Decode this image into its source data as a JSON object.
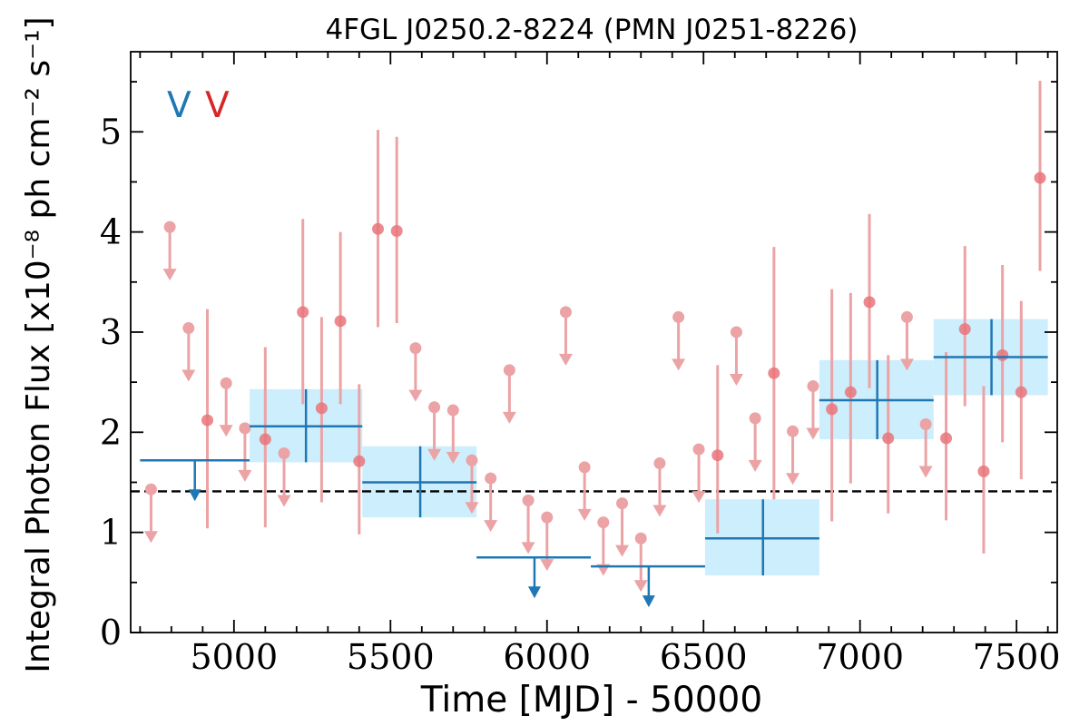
{
  "chart_data": {
    "type": "scatter",
    "title": "4FGL J0250.2-8224 (PMN J0251-8226)",
    "xlabel": "Time [MJD] - 50000",
    "ylabel": "Integral Photon Flux [x10⁻⁸ ph cm⁻² s⁻¹]",
    "xlim": [
      4670,
      7630
    ],
    "ylim": [
      0,
      5.8
    ],
    "xticks": [
      5000,
      5500,
      6000,
      6500,
      7000,
      7500
    ],
    "yticks": [
      0,
      1,
      2,
      3,
      4,
      5
    ],
    "legend": {
      "placement": "top-left",
      "entries": [
        {
          "label": "V",
          "color": "#1f77b4"
        },
        {
          "label": "V",
          "color": "#d62728"
        }
      ]
    },
    "reference_line": {
      "y": 1.41,
      "style": "dashed",
      "color": "#000000"
    },
    "colors": {
      "blue": "#1f77b4",
      "band": "#cdeefc",
      "red_marker": "#e9747a",
      "red_bar": "#eba3a5"
    },
    "series": [
      {
        "type": "binned",
        "bins": [
          {
            "x0": 4700,
            "x1": 5050,
            "xc": 4875,
            "ul": 1.72
          },
          {
            "x0": 5050,
            "x1": 5410,
            "xc": 5230,
            "y": 2.06,
            "ylo": 1.7,
            "yhi": 2.43
          },
          {
            "x0": 5410,
            "x1": 5775,
            "xc": 5595,
            "y": 1.5,
            "ylo": 1.15,
            "yhi": 1.86
          },
          {
            "x0": 5775,
            "x1": 6140,
            "xc": 5960,
            "ul": 0.75
          },
          {
            "x0": 6140,
            "x1": 6505,
            "xc": 6325,
            "ul": 0.66
          },
          {
            "x0": 6505,
            "x1": 6870,
            "xc": 6690,
            "y": 0.94,
            "ylo": 0.57,
            "yhi": 1.33
          },
          {
            "x0": 6870,
            "x1": 7235,
            "xc": 7055,
            "y": 2.32,
            "ylo": 1.93,
            "yhi": 2.72
          },
          {
            "x0": 7235,
            "x1": 7600,
            "xc": 7420,
            "y": 2.75,
            "ylo": 2.37,
            "yhi": 3.13
          }
        ]
      },
      {
        "type": "points",
        "points": [
          {
            "x": 4735,
            "ul": 1.43
          },
          {
            "x": 4795,
            "ul": 4.05
          },
          {
            "x": 4855,
            "ul": 3.04
          },
          {
            "x": 4915,
            "y": 2.12,
            "ylo": 1.04,
            "yhi": 3.23
          },
          {
            "x": 4975,
            "ul": 2.49
          },
          {
            "x": 5035,
            "ul": 2.04
          },
          {
            "x": 5100,
            "y": 1.93,
            "ylo": 1.05,
            "yhi": 2.85
          },
          {
            "x": 5160,
            "ul": 1.79
          },
          {
            "x": 5220,
            "y": 3.2,
            "ylo": 2.28,
            "yhi": 4.13
          },
          {
            "x": 5280,
            "y": 2.24,
            "ylo": 1.3,
            "yhi": 3.15
          },
          {
            "x": 5340,
            "y": 3.11,
            "ylo": 2.28,
            "yhi": 4.0
          },
          {
            "x": 5400,
            "y": 1.71,
            "ylo": 0.98,
            "yhi": 2.48
          },
          {
            "x": 5460,
            "y": 4.03,
            "ylo": 3.05,
            "yhi": 5.02
          },
          {
            "x": 5520,
            "y": 4.01,
            "ylo": 3.09,
            "yhi": 4.95
          },
          {
            "x": 5580,
            "ul": 2.84
          },
          {
            "x": 5640,
            "ul": 2.25
          },
          {
            "x": 5700,
            "ul": 2.22
          },
          {
            "x": 5760,
            "ul": 1.72
          },
          {
            "x": 5820,
            "ul": 1.54
          },
          {
            "x": 5880,
            "ul": 2.62
          },
          {
            "x": 5940,
            "ul": 1.32
          },
          {
            "x": 6000,
            "ul": 1.15
          },
          {
            "x": 6060,
            "ul": 3.2
          },
          {
            "x": 6120,
            "ul": 1.65
          },
          {
            "x": 6180,
            "ul": 1.1
          },
          {
            "x": 6240,
            "ul": 1.29
          },
          {
            "x": 6300,
            "ul": 0.94
          },
          {
            "x": 6360,
            "ul": 1.69
          },
          {
            "x": 6420,
            "ul": 3.15
          },
          {
            "x": 6485,
            "ul": 1.83
          },
          {
            "x": 6545,
            "y": 1.77,
            "ylo": 0.99,
            "yhi": 2.67
          },
          {
            "x": 6605,
            "ul": 3.0
          },
          {
            "x": 6665,
            "ul": 2.14
          },
          {
            "x": 6725,
            "y": 2.59,
            "ylo": 1.33,
            "yhi": 3.85
          },
          {
            "x": 6785,
            "ul": 2.01
          },
          {
            "x": 6850,
            "ul": 2.46
          },
          {
            "x": 6910,
            "y": 2.23,
            "ylo": 1.11,
            "yhi": 3.43
          },
          {
            "x": 6970,
            "y": 2.4,
            "ylo": 1.49,
            "yhi": 3.39
          },
          {
            "x": 7030,
            "y": 3.3,
            "ylo": 2.44,
            "yhi": 4.18
          },
          {
            "x": 7090,
            "y": 1.94,
            "ylo": 1.19,
            "yhi": 2.77
          },
          {
            "x": 7150,
            "ul": 3.15
          },
          {
            "x": 7210,
            "ul": 2.08
          },
          {
            "x": 7275,
            "y": 1.94,
            "ylo": 1.12,
            "yhi": 2.8
          },
          {
            "x": 7335,
            "y": 3.03,
            "ylo": 2.26,
            "yhi": 3.86
          },
          {
            "x": 7395,
            "y": 1.61,
            "ylo": 0.79,
            "yhi": 2.46
          },
          {
            "x": 7455,
            "y": 2.77,
            "ylo": 1.9,
            "yhi": 3.67
          },
          {
            "x": 7515,
            "y": 2.4,
            "ylo": 1.53,
            "yhi": 3.31
          },
          {
            "x": 7575,
            "y": 4.54,
            "ylo": 3.61,
            "yhi": 5.51
          }
        ]
      }
    ]
  }
}
